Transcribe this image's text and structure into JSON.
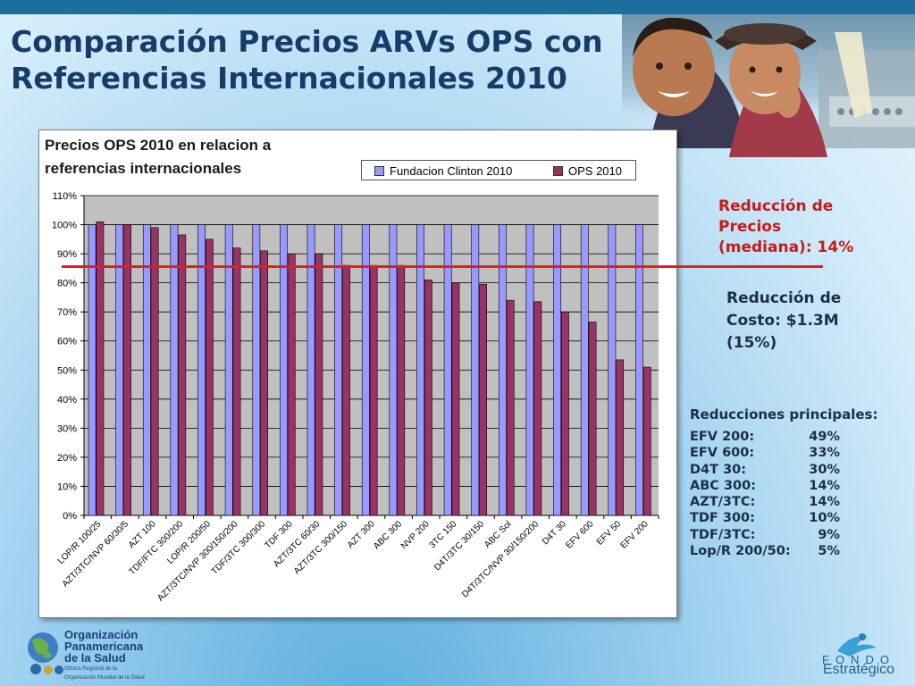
{
  "slide": {
    "title_lines": [
      "Comparación Precios ARVs OPS con",
      "Referencias Internacionales 2010"
    ]
  },
  "chart_data": {
    "type": "bar",
    "title_lines": [
      "Precios OPS 2010 en relacion a",
      "referencias internacionales"
    ],
    "categories": [
      "LOP/R 100/25",
      "AZT/3TC/NVP 60/30/5",
      "AZT 100",
      "TDF/FTC 300/200",
      "LOP/R 200/50",
      "AZT/3TC/NVP 300/150/200",
      "TDF/3TC 300/300",
      "TDF 300",
      "AZT/3TC 60/30",
      "AZT/3TC 300/150",
      "AZT 300",
      "ABC 300",
      "NVP 200",
      "3TC 150",
      "D4T/3TC 30/150",
      "ABC Sol",
      "D4T/3TC/NVP 30/150/200",
      "D4T 30",
      "EFV 600",
      "EFV 50",
      "EFV 200"
    ],
    "series": [
      {
        "name": "Fundacion Clinton 2010",
        "color": "#9999ff",
        "values": [
          100,
          100,
          100,
          100,
          100,
          100,
          100,
          100,
          100,
          100,
          100,
          100,
          100,
          100,
          100,
          100,
          100,
          100,
          100,
          100,
          100
        ]
      },
      {
        "name": "OPS 2010",
        "color": "#993366",
        "values": [
          101,
          100,
          99,
          96.5,
          95,
          92,
          91,
          90,
          90,
          86,
          86,
          86,
          81,
          80,
          79.5,
          74,
          73.5,
          70,
          66.5,
          53.5,
          51
        ]
      }
    ],
    "ylim": [
      0,
      110
    ],
    "y_ticks": [
      "0%",
      "10%",
      "20%",
      "30%",
      "40%",
      "50%",
      "60%",
      "70%",
      "80%",
      "90%",
      "100%",
      "110%"
    ],
    "grid": true,
    "legend": "top-right",
    "plot_background": "#c0c0c0",
    "reference_line": {
      "value": 86,
      "color": "#e02020"
    }
  },
  "annotations": {
    "median_lines": [
      "Reducción de",
      "Precios",
      "(mediana): 14%"
    ],
    "cost_lines": [
      "Reducción de",
      "Costo: $1.3M",
      "(15%)"
    ],
    "reductions_title": "Reducciones principales:",
    "reductions": [
      {
        "label": "EFV 200:",
        "value": "49%"
      },
      {
        "label": "EFV 600:",
        "value": "33%"
      },
      {
        "label": "D4T 30:",
        "value": "30%"
      },
      {
        "label": "ABC 300:",
        "value": "14%"
      },
      {
        "label": "AZT/3TC:",
        "value": "14%"
      },
      {
        "label": "TDF 300:",
        "value": "10%"
      },
      {
        "label": "TDF/3TC:",
        "value": "9%"
      },
      {
        "label": "Lop/R 200/50:",
        "value": "5%"
      }
    ]
  },
  "logos": {
    "ops_lines": [
      "Organización",
      "Panamericana",
      "de la Salud"
    ],
    "ops_small_lines": [
      "Oficina Regional de la",
      "Organización Mundial de la Salud"
    ],
    "fondo_lines": [
      "FONDO",
      "Estratégico"
    ]
  },
  "colors": {
    "title": "#173c69",
    "accent_red": "#c91a1a",
    "top_bar": "#1c6e9c"
  }
}
